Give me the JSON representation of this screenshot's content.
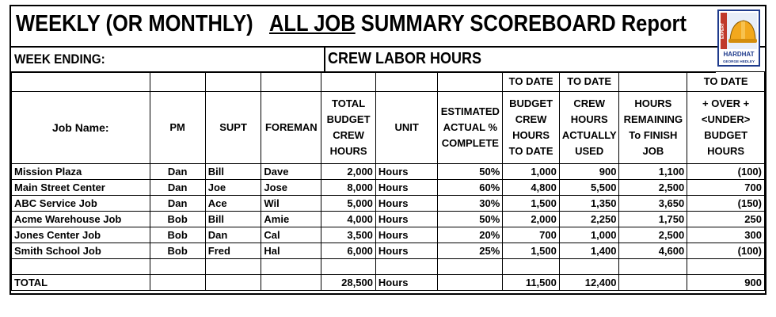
{
  "title": {
    "part1": "WEEKLY (OR MONTHLY)",
    "part2": "ALL JOB",
    "part3": "SUMMARY  SCOREBOARD Report"
  },
  "week_ending_label": "WEEK ENDING:",
  "section_label": "CREW LABOR HOURS",
  "logo": {
    "brand": "HARDHAT",
    "author": "GEORGE HEDLEY",
    "side_text": "EXPERT",
    "colors": {
      "frame": "#1f3b8c",
      "hat": "#f2a81d"
    }
  },
  "to_date_labels": [
    "TO DATE",
    "TO DATE",
    "TO DATE"
  ],
  "columns": {
    "job_name": "Job Name:",
    "pm": "PM",
    "supt": "SUPT",
    "foreman": "FOREMAN",
    "total_budget": "TOTAL BUDGET CREW HOURS",
    "unit": "UNIT",
    "estimated": "ESTIMATED ACTUAL % COMPLETE",
    "budget_to_date": "BUDGET CREW HOURS TO DATE",
    "crew_used": "CREW HOURS ACTUALLY USED",
    "remaining": "HOURS REMAINING To FINISH JOB",
    "over_under": "+ OVER + <UNDER> BUDGET HOURS"
  },
  "rows": [
    {
      "job": "Mission Plaza",
      "pm": "Dan",
      "supt": "Bill",
      "foreman": "Dave",
      "budget": "2,000",
      "unit": "Hours",
      "pct": "50%",
      "budget_td": "1,000",
      "used": "900",
      "remaining": "1,100",
      "over_under": "(100)"
    },
    {
      "job": "Main Street Center",
      "pm": "Dan",
      "supt": "Joe",
      "foreman": "Jose",
      "budget": "8,000",
      "unit": "Hours",
      "pct": "60%",
      "budget_td": "4,800",
      "used": "5,500",
      "remaining": "2,500",
      "over_under": "700"
    },
    {
      "job": "ABC Service Job",
      "pm": "Dan",
      "supt": "Ace",
      "foreman": "Wil",
      "budget": "5,000",
      "unit": "Hours",
      "pct": "30%",
      "budget_td": "1,500",
      "used": "1,350",
      "remaining": "3,650",
      "over_under": "(150)"
    },
    {
      "job": "Acme Warehouse Job",
      "pm": "Bob",
      "supt": "Bill",
      "foreman": "Amie",
      "budget": "4,000",
      "unit": "Hours",
      "pct": "50%",
      "budget_td": "2,000",
      "used": "2,250",
      "remaining": "1,750",
      "over_under": "250"
    },
    {
      "job": "Jones Center Job",
      "pm": "Bob",
      "supt": "Dan",
      "foreman": "Cal",
      "budget": "3,500",
      "unit": "Hours",
      "pct": "20%",
      "budget_td": "700",
      "used": "1,000",
      "remaining": "2,500",
      "over_under": "300"
    },
    {
      "job": "Smith School Job",
      "pm": "Bob",
      "supt": "Fred",
      "foreman": "Hal",
      "budget": "6,000",
      "unit": "Hours",
      "pct": "25%",
      "budget_td": "1,500",
      "used": "1,400",
      "remaining": "4,600",
      "over_under": "(100)"
    }
  ],
  "total": {
    "label": "TOTAL",
    "budget": "28,500",
    "unit": "Hours",
    "budget_td": "11,500",
    "used": "12,400",
    "over_under": "900"
  }
}
